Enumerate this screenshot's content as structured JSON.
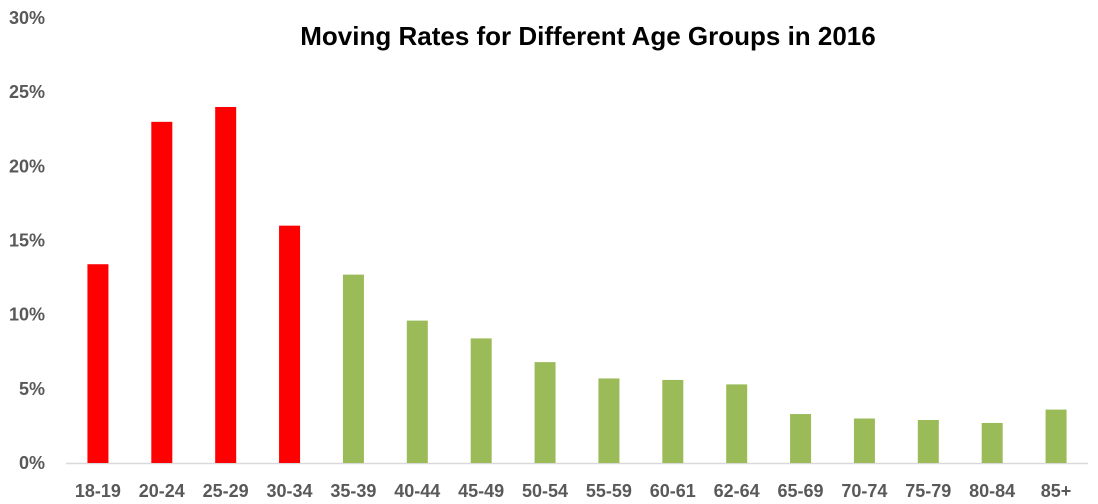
{
  "chart_data": {
    "type": "bar",
    "title": "Moving Rates for Different Age Groups in 2016",
    "xlabel": "",
    "ylabel": "",
    "categories": [
      "18-19",
      "20-24",
      "25-29",
      "30-34",
      "35-39",
      "40-44",
      "45-49",
      "50-54",
      "55-59",
      "60-61",
      "62-64",
      "65-69",
      "70-74",
      "75-79",
      "80-84",
      "85+"
    ],
    "values": [
      13.4,
      23.0,
      24.0,
      16.0,
      12.7,
      9.6,
      8.4,
      6.8,
      5.7,
      5.6,
      5.3,
      3.3,
      3.0,
      2.9,
      2.7,
      3.6
    ],
    "bar_colors": [
      "#ff0000",
      "#ff0000",
      "#ff0000",
      "#ff0000",
      "#9bbb59",
      "#9bbb59",
      "#9bbb59",
      "#9bbb59",
      "#9bbb59",
      "#9bbb59",
      "#9bbb59",
      "#9bbb59",
      "#9bbb59",
      "#9bbb59",
      "#9bbb59",
      "#9bbb59"
    ],
    "ylim": [
      0,
      30
    ],
    "yticks": [
      "0%",
      "5%",
      "10%",
      "15%",
      "20%",
      "25%",
      "30%"
    ],
    "grid": false,
    "legend": "none",
    "axis_color": "#d9d9d9"
  }
}
